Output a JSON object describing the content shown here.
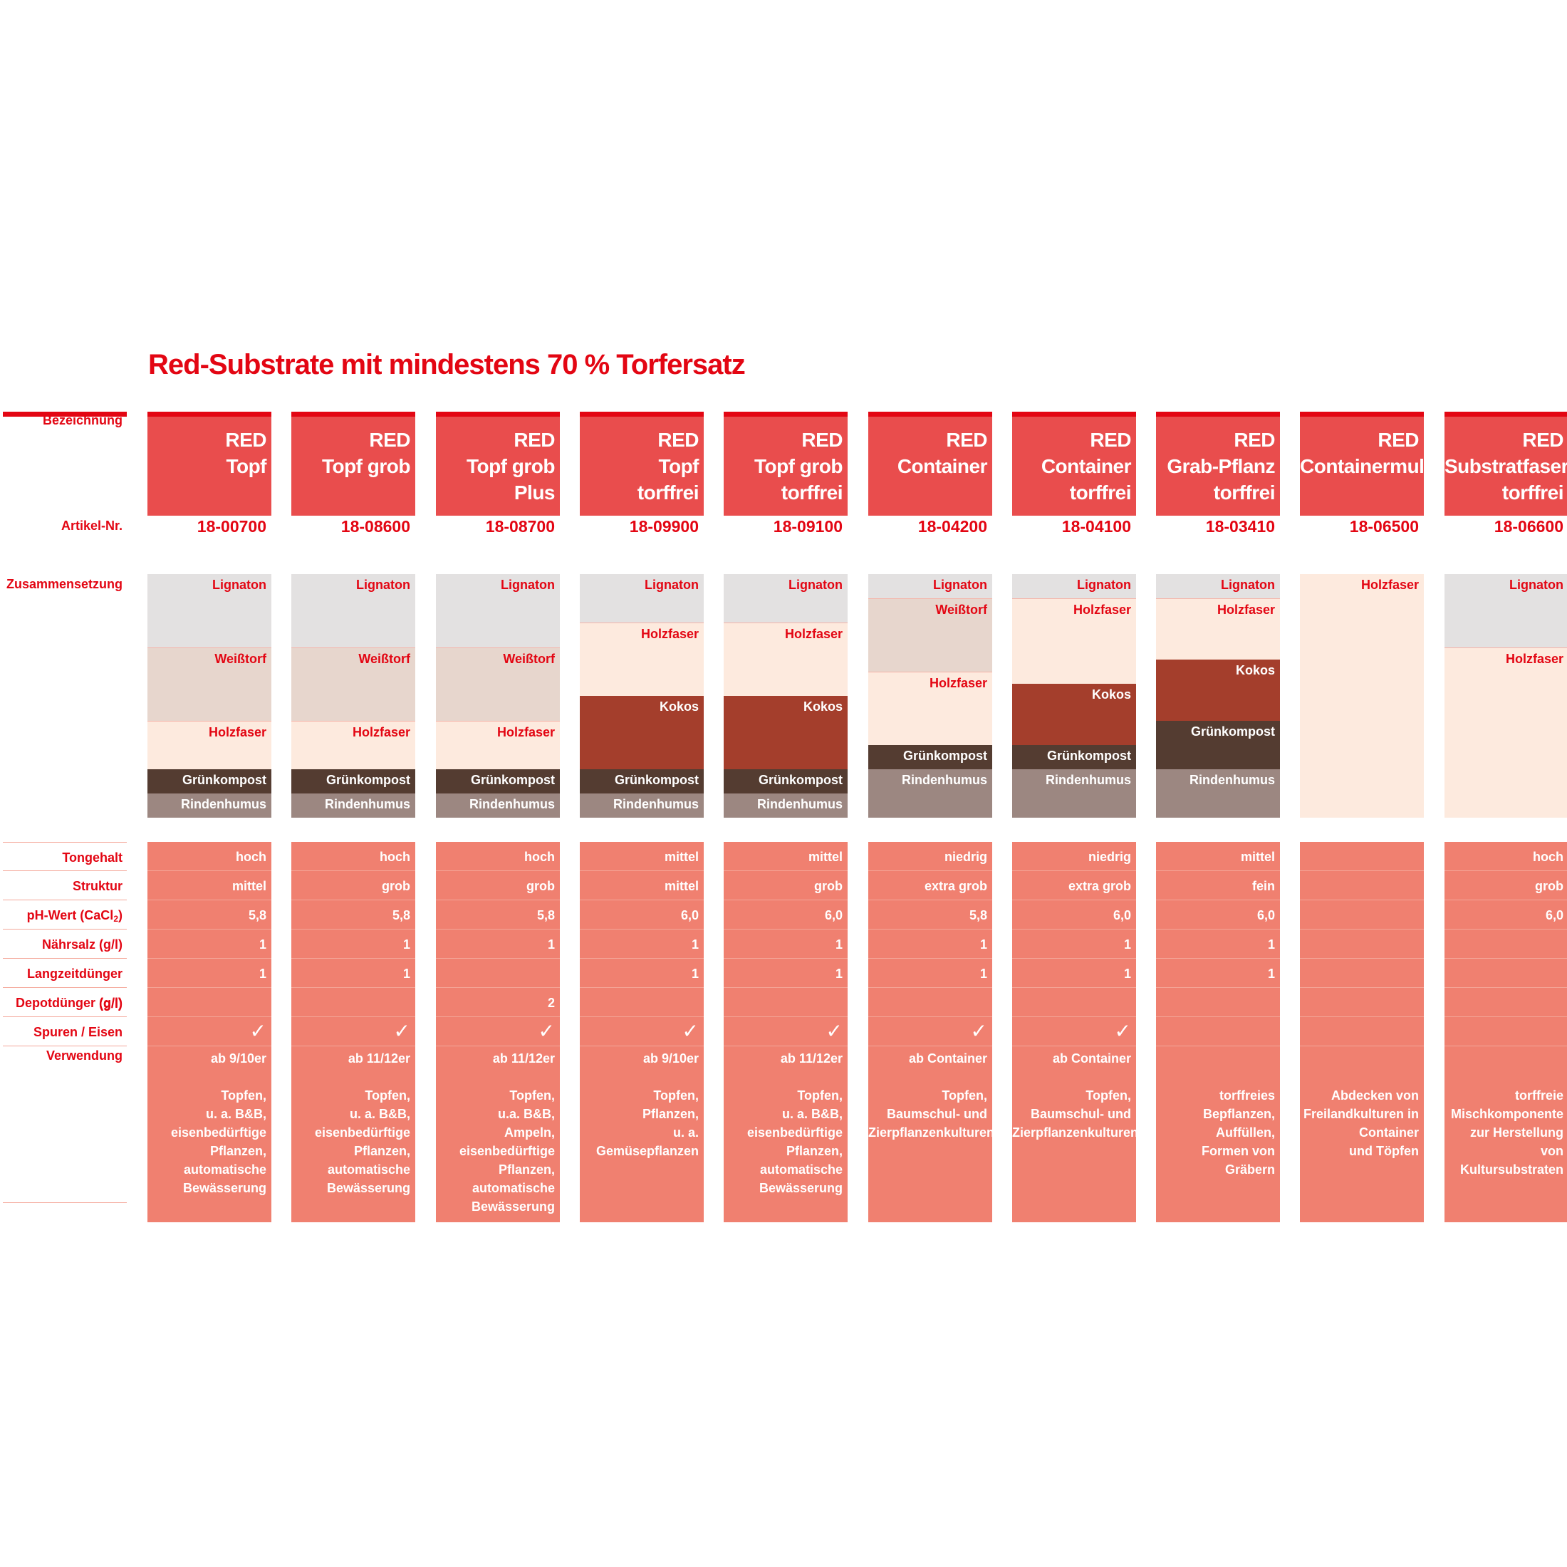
{
  "title": "Red-Substrate mit mindestens 70 % Torfersatz",
  "row_labels": {
    "name": "Bezeichnung",
    "article": "Artikel-Nr.",
    "composition": "Zusammensetzung",
    "clay": "Tongehalt",
    "structure": "Struktur",
    "ph_prefix": "pH-Wert (CaCl",
    "ph_sub": "2",
    "ph_suffix": ")",
    "salt": "Nährsalz (g/l)",
    "longterm": "Langzeitdünger (g/l)",
    "depot": "Depotdünger (g/l)",
    "trace": "Spuren / Eisen",
    "usage": "Verwendung"
  },
  "colors": {
    "brand_red": "#e30613",
    "header_bg": "#e94d4d",
    "props_bg": "#f08070",
    "lignaton": "#e3e1e1",
    "weisstorf": "#e7d6cd",
    "holzfaser": "#fdeade",
    "kokos": "#a43e2c",
    "gruenkompost": "#543c31",
    "rindenhumus": "#9c8781"
  },
  "check_symbol": "✓",
  "products": [
    {
      "name_lines": [
        "RED",
        "Topf"
      ],
      "article": "18-00700",
      "layers": [
        {
          "label": "Lignaton",
          "share": 0.3,
          "kind": "lignaton"
        },
        {
          "label": "Weißtorf",
          "share": 0.3,
          "kind": "weisstorf"
        },
        {
          "label": "Holzfaser",
          "share": 0.2,
          "kind": "holzfaser"
        },
        {
          "label": "Grünkompost",
          "share": 0.1,
          "kind": "gruenkompost"
        },
        {
          "label": "Rindenhumus",
          "share": 0.1,
          "kind": "rindenhumus"
        }
      ],
      "clay": "hoch",
      "structure": "mittel",
      "ph": "5,8",
      "salt": "1",
      "longterm": "1",
      "depot": "",
      "trace": true,
      "usage_top": "ab 9/10er",
      "usage_lines": [
        "Topfen,",
        "u. a. B&B,",
        "eisenbedürftige",
        "Pflanzen,",
        "automatische",
        "Bewässerung"
      ]
    },
    {
      "name_lines": [
        "RED",
        "Topf grob"
      ],
      "article": "18-08600",
      "layers": [
        {
          "label": "Lignaton",
          "share": 0.3,
          "kind": "lignaton"
        },
        {
          "label": "Weißtorf",
          "share": 0.3,
          "kind": "weisstorf"
        },
        {
          "label": "Holzfaser",
          "share": 0.2,
          "kind": "holzfaser"
        },
        {
          "label": "Grünkompost",
          "share": 0.1,
          "kind": "gruenkompost"
        },
        {
          "label": "Rindenhumus",
          "share": 0.1,
          "kind": "rindenhumus"
        }
      ],
      "clay": "hoch",
      "structure": "grob",
      "ph": "5,8",
      "salt": "1",
      "longterm": "1",
      "depot": "",
      "trace": true,
      "usage_top": "ab 11/12er",
      "usage_lines": [
        "Topfen,",
        "u. a. B&B,",
        "eisenbedürftige",
        "Pflanzen,",
        "automatische",
        "Bewässerung"
      ]
    },
    {
      "name_lines": [
        "RED",
        "Topf grob",
        "Plus"
      ],
      "article": "18-08700",
      "layers": [
        {
          "label": "Lignaton",
          "share": 0.3,
          "kind": "lignaton"
        },
        {
          "label": "Weißtorf",
          "share": 0.3,
          "kind": "weisstorf"
        },
        {
          "label": "Holzfaser",
          "share": 0.2,
          "kind": "holzfaser"
        },
        {
          "label": "Grünkompost",
          "share": 0.1,
          "kind": "gruenkompost"
        },
        {
          "label": "Rindenhumus",
          "share": 0.1,
          "kind": "rindenhumus"
        }
      ],
      "clay": "hoch",
      "structure": "grob",
      "ph": "5,8",
      "salt": "1",
      "longterm": "",
      "depot": "2",
      "trace": true,
      "usage_top": "ab 11/12er",
      "usage_lines": [
        "Topfen,",
        "u.a. B&B,",
        "Ampeln,",
        "eisenbedürftige",
        "Pflanzen,",
        "automatische",
        "Bewässerung"
      ]
    },
    {
      "name_lines": [
        "RED",
        "Topf",
        "torffrei"
      ],
      "article": "18-09900",
      "layers": [
        {
          "label": "Lignaton",
          "share": 0.2,
          "kind": "lignaton"
        },
        {
          "label": "Holzfaser",
          "share": 0.3,
          "kind": "holzfaser"
        },
        {
          "label": "Kokos",
          "share": 0.3,
          "kind": "kokos"
        },
        {
          "label": "Grünkompost",
          "share": 0.1,
          "kind": "gruenkompost"
        },
        {
          "label": "Rindenhumus",
          "share": 0.1,
          "kind": "rindenhumus"
        }
      ],
      "clay": "mittel",
      "structure": "mittel",
      "ph": "6,0",
      "salt": "1",
      "longterm": "1",
      "depot": "",
      "trace": true,
      "usage_top": "ab 9/10er",
      "usage_lines": [
        "Topfen,",
        "Pflanzen,",
        "u. a. Gemüsepflanzen"
      ]
    },
    {
      "name_lines": [
        "RED",
        "Topf grob",
        "torffrei"
      ],
      "article": "18-09100",
      "layers": [
        {
          "label": "Lignaton",
          "share": 0.2,
          "kind": "lignaton"
        },
        {
          "label": "Holzfaser",
          "share": 0.3,
          "kind": "holzfaser"
        },
        {
          "label": "Kokos",
          "share": 0.3,
          "kind": "kokos"
        },
        {
          "label": "Grünkompost",
          "share": 0.1,
          "kind": "gruenkompost"
        },
        {
          "label": "Rindenhumus",
          "share": 0.1,
          "kind": "rindenhumus"
        }
      ],
      "clay": "mittel",
      "structure": "grob",
      "ph": "6,0",
      "salt": "1",
      "longterm": "1",
      "depot": "",
      "trace": true,
      "usage_top": "ab 11/12er",
      "usage_lines": [
        "Topfen,",
        "u. a. B&B,",
        "eisenbedürftige",
        "Pflanzen,",
        "automatische",
        "Bewässerung"
      ]
    },
    {
      "name_lines": [
        "RED",
        "Container"
      ],
      "article": "18-04200",
      "layers": [
        {
          "label": "Lignaton",
          "share": 0.1,
          "kind": "lignaton"
        },
        {
          "label": "Weißtorf",
          "share": 0.3,
          "kind": "weisstorf"
        },
        {
          "label": "Holzfaser",
          "share": 0.3,
          "kind": "holzfaser"
        },
        {
          "label": "Grünkompost",
          "share": 0.1,
          "kind": "gruenkompost"
        },
        {
          "label": "Rindenhumus",
          "share": 0.2,
          "kind": "rindenhumus"
        }
      ],
      "clay": "niedrig",
      "structure": "extra grob",
      "ph": "5,8",
      "salt": "1",
      "longterm": "1",
      "depot": "",
      "trace": true,
      "usage_top": "ab Container",
      "usage_lines": [
        "Topfen,",
        "Baumschul- und",
        "Zierpflanzenkulturen"
      ]
    },
    {
      "name_lines": [
        "RED",
        "Container",
        "torffrei"
      ],
      "article": "18-04100",
      "layers": [
        {
          "label": "Lignaton",
          "share": 0.1,
          "kind": "lignaton"
        },
        {
          "label": "Holzfaser",
          "share": 0.35,
          "kind": "holzfaser"
        },
        {
          "label": "Kokos",
          "share": 0.25,
          "kind": "kokos"
        },
        {
          "label": "Grünkompost",
          "share": 0.1,
          "kind": "gruenkompost"
        },
        {
          "label": "Rindenhumus",
          "share": 0.2,
          "kind": "rindenhumus"
        }
      ],
      "clay": "niedrig",
      "structure": "extra grob",
      "ph": "6,0",
      "salt": "1",
      "longterm": "1",
      "depot": "",
      "trace": true,
      "usage_top": "ab Container",
      "usage_lines": [
        "Topfen,",
        "Baumschul- und",
        "Zierpflanzenkulturen"
      ]
    },
    {
      "name_lines": [
        "RED",
        "Grab-Pflanz",
        "torffrei"
      ],
      "article": "18-03410",
      "layers": [
        {
          "label": "Lignaton",
          "share": 0.1,
          "kind": "lignaton"
        },
        {
          "label": "Holzfaser",
          "share": 0.25,
          "kind": "holzfaser"
        },
        {
          "label": "Kokos",
          "share": 0.25,
          "kind": "kokos"
        },
        {
          "label": "Grünkompost",
          "share": 0.2,
          "kind": "gruenkompost"
        },
        {
          "label": "Rindenhumus",
          "share": 0.2,
          "kind": "rindenhumus"
        }
      ],
      "clay": "mittel",
      "structure": "fein",
      "ph": "6,0",
      "salt": "1",
      "longterm": "1",
      "depot": "",
      "trace": false,
      "usage_top": "",
      "usage_lines": [
        "torffreies Bepflanzen,",
        "Auffüllen,",
        "Formen von Gräbern"
      ]
    },
    {
      "name_lines": [
        "RED",
        "Containermulch"
      ],
      "article": "18-06500",
      "layers": [
        {
          "label": "Holzfaser",
          "share": 1.0,
          "kind": "holzfaser"
        }
      ],
      "clay": "",
      "structure": "",
      "ph": "",
      "salt": "",
      "longterm": "",
      "depot": "",
      "trace": false,
      "usage_top": "",
      "usage_lines": [
        "Abdecken von",
        "Freilandkulturen in",
        "Container",
        "und Töpfen"
      ]
    },
    {
      "name_lines": [
        "RED",
        "Substratfaser",
        "torffrei"
      ],
      "article": "18-06600",
      "layers": [
        {
          "label": "Lignaton",
          "share": 0.3,
          "kind": "lignaton"
        },
        {
          "label": "Holzfaser",
          "share": 0.7,
          "kind": "holzfaser"
        }
      ],
      "clay": "hoch",
      "structure": "grob",
      "ph": "6,0",
      "salt": "",
      "longterm": "",
      "depot": "",
      "trace": false,
      "usage_top": "",
      "usage_lines": [
        "torffreie",
        "Mischkomponente",
        "zur Herstellung von",
        "Kultursubstraten"
      ]
    }
  ]
}
